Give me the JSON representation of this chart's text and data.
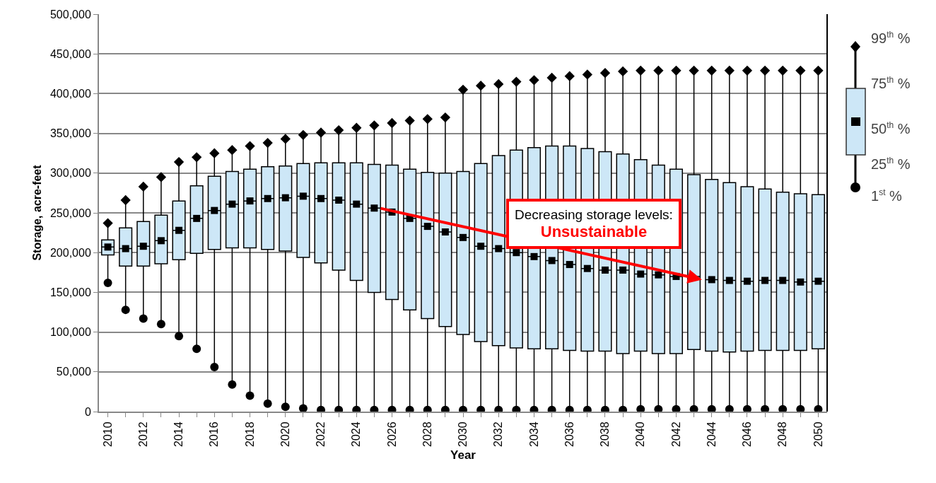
{
  "chart_data": {
    "type": "box",
    "xlabel": "Year",
    "ylabel": "Storage, acre-feet",
    "x": [
      2010,
      2011,
      2012,
      2013,
      2014,
      2015,
      2016,
      2017,
      2018,
      2019,
      2020,
      2021,
      2022,
      2023,
      2024,
      2025,
      2026,
      2027,
      2028,
      2029,
      2030,
      2031,
      2032,
      2033,
      2034,
      2035,
      2036,
      2037,
      2038,
      2039,
      2040,
      2041,
      2042,
      2043,
      2044,
      2045,
      2046,
      2047,
      2048,
      2049,
      2050
    ],
    "xlim": [
      2009.5,
      2050.5
    ],
    "xticks": [
      2010,
      {
        "value": 2011,
        "label": null
      },
      2012,
      {
        "value": 2013,
        "label": null
      },
      2014,
      {
        "value": 2015,
        "label": null
      },
      2016,
      {
        "value": 2017,
        "label": null
      },
      2018,
      {
        "value": 2019,
        "label": null
      },
      2020,
      {
        "value": 2021,
        "label": null
      },
      2022,
      {
        "value": 2023,
        "label": null
      },
      2024,
      {
        "value": 2025,
        "label": null
      },
      2026,
      {
        "value": 2027,
        "label": null
      },
      2028,
      {
        "value": 2029,
        "label": null
      },
      2030,
      {
        "value": 2031,
        "label": null
      },
      2032,
      {
        "value": 2033,
        "label": null
      },
      2034,
      {
        "value": 2035,
        "label": null
      },
      2036,
      {
        "value": 2037,
        "label": null
      },
      2038,
      {
        "value": 2039,
        "label": null
      },
      2040,
      {
        "value": 2041,
        "label": null
      },
      2042,
      {
        "value": 2043,
        "label": null
      },
      2044,
      {
        "value": 2045,
        "label": null
      },
      2046,
      {
        "value": 2047,
        "label": null
      },
      2048,
      {
        "value": 2049,
        "label": null
      },
      2050
    ],
    "ylim": [
      0,
      500000
    ],
    "yticks": [
      0,
      {
        "value": 50000,
        "label": "50,000"
      },
      {
        "value": 100000,
        "label": "100,000"
      },
      {
        "value": 150000,
        "label": "150,000"
      },
      {
        "value": 200000,
        "label": "200,000"
      },
      {
        "value": 250000,
        "label": "250,000"
      },
      {
        "value": 300000,
        "label": "300,000"
      },
      {
        "value": 350000,
        "label": "350,000"
      },
      {
        "value": 400000,
        "label": "400,000"
      },
      {
        "value": 450000,
        "label": "450,000"
      },
      {
        "value": 500000,
        "label": "500,000"
      }
    ],
    "grid": "y",
    "series": [
      {
        "color": "#cde7f7",
        "boxes": [
          {
            "low": 162000,
            "q1": 197000,
            "median": 207000,
            "q3": 216000,
            "high": 237000
          },
          {
            "low": 128000,
            "q1": 183000,
            "median": 205000,
            "q3": 231000,
            "high": 266000
          },
          {
            "low": 117000,
            "q1": 183000,
            "median": 208000,
            "q3": 239000,
            "high": 283000
          },
          {
            "low": 110000,
            "q1": 186000,
            "median": 215000,
            "q3": 247000,
            "high": 295000
          },
          {
            "low": 95000,
            "q1": 191000,
            "median": 228000,
            "q3": 265000,
            "high": 314000
          },
          {
            "low": 79000,
            "q1": 199000,
            "median": 243000,
            "q3": 284000,
            "high": 320000
          },
          {
            "low": 56000,
            "q1": 204000,
            "median": 253000,
            "q3": 296000,
            "high": 325000
          },
          {
            "low": 34000,
            "q1": 206000,
            "median": 261000,
            "q3": 302000,
            "high": 329000
          },
          {
            "low": 20000,
            "q1": 206000,
            "median": 265000,
            "q3": 305000,
            "high": 334000
          },
          {
            "low": 10000,
            "q1": 204000,
            "median": 268000,
            "q3": 308000,
            "high": 338000
          },
          {
            "low": 6000,
            "q1": 202000,
            "median": 269000,
            "q3": 309000,
            "high": 343000
          },
          {
            "low": 4000,
            "q1": 194000,
            "median": 271000,
            "q3": 312000,
            "high": 348000
          },
          {
            "low": 2000,
            "q1": 187000,
            "median": 268000,
            "q3": 313000,
            "high": 351000
          },
          {
            "low": 2000,
            "q1": 178000,
            "median": 266000,
            "q3": 313000,
            "high": 354000
          },
          {
            "low": 2000,
            "q1": 165000,
            "median": 261000,
            "q3": 313000,
            "high": 357000
          },
          {
            "low": 2000,
            "q1": 150000,
            "median": 256000,
            "q3": 311000,
            "high": 360000
          },
          {
            "low": 2000,
            "q1": 141000,
            "median": 251000,
            "q3": 310000,
            "high": 363000
          },
          {
            "low": 2000,
            "q1": 128000,
            "median": 243000,
            "q3": 305000,
            "high": 366000
          },
          {
            "low": 2000,
            "q1": 117000,
            "median": 233000,
            "q3": 301000,
            "high": 368000
          },
          {
            "low": 2000,
            "q1": 107000,
            "median": 226000,
            "q3": 300000,
            "high": 370000
          },
          {
            "low": 2000,
            "q1": 97000,
            "median": 219000,
            "q3": 302000,
            "high": 405000
          },
          {
            "low": 2000,
            "q1": 88000,
            "median": 208000,
            "q3": 312000,
            "high": 410000
          },
          {
            "low": 2000,
            "q1": 83000,
            "median": 205000,
            "q3": 322000,
            "high": 412000
          },
          {
            "low": 2000,
            "q1": 80000,
            "median": 200000,
            "q3": 329000,
            "high": 415000
          },
          {
            "low": 2000,
            "q1": 79000,
            "median": 195000,
            "q3": 332000,
            "high": 417000
          },
          {
            "low": 2000,
            "q1": 79000,
            "median": 190000,
            "q3": 334000,
            "high": 420000
          },
          {
            "low": 2000,
            "q1": 77000,
            "median": 185000,
            "q3": 334000,
            "high": 422000
          },
          {
            "low": 2000,
            "q1": 76000,
            "median": 180000,
            "q3": 331000,
            "high": 424000
          },
          {
            "low": 2000,
            "q1": 76000,
            "median": 178000,
            "q3": 327000,
            "high": 426000
          },
          {
            "low": 2000,
            "q1": 73000,
            "median": 178000,
            "q3": 324000,
            "high": 428000
          },
          {
            "low": 3000,
            "q1": 76000,
            "median": 173000,
            "q3": 317000,
            "high": 429000
          },
          {
            "low": 3000,
            "q1": 73000,
            "median": 172000,
            "q3": 310000,
            "high": 429000
          },
          {
            "low": 3000,
            "q1": 73000,
            "median": 170000,
            "q3": 305000,
            "high": 429000
          },
          {
            "low": 3000,
            "q1": 78000,
            "median": 170000,
            "q3": 298000,
            "high": 429000
          },
          {
            "low": 3000,
            "q1": 76000,
            "median": 166000,
            "q3": 292000,
            "high": 429000
          },
          {
            "low": 3000,
            "q1": 75000,
            "median": 165000,
            "q3": 288000,
            "high": 429000
          },
          {
            "low": 3000,
            "q1": 76000,
            "median": 164000,
            "q3": 283000,
            "high": 429000
          },
          {
            "low": 3000,
            "q1": 77000,
            "median": 165000,
            "q3": 280000,
            "high": 429000
          },
          {
            "low": 3000,
            "q1": 77000,
            "median": 165000,
            "q3": 276000,
            "high": 429000
          },
          {
            "low": 3000,
            "q1": 77000,
            "median": 163000,
            "q3": 274000,
            "high": 429000
          },
          {
            "low": 3000,
            "q1": 79000,
            "median": 164000,
            "q3": 273000,
            "high": 429000
          }
        ]
      },
      {
        "type": "scatter",
        "marker": "diamond",
        "color": "#000000",
        "values": [
          237000,
          266000,
          283000,
          295000,
          314000,
          320000,
          325000,
          329000,
          334000,
          338000,
          343000,
          348000,
          351000,
          354000,
          357000,
          360000,
          363000,
          366000,
          368000,
          370000,
          405000,
          410000,
          412000,
          415000,
          417000,
          420000,
          422000,
          424000,
          426000,
          428000,
          429000,
          429000,
          429000,
          429000,
          429000,
          429000,
          429000,
          429000,
          429000,
          429000,
          429000
        ]
      },
      {
        "type": "scatter",
        "marker": "square",
        "color": "#000000",
        "values": [
          207000,
          205000,
          208000,
          215000,
          228000,
          243000,
          253000,
          261000,
          265000,
          268000,
          269000,
          271000,
          268000,
          266000,
          261000,
          256000,
          251000,
          243000,
          233000,
          226000,
          219000,
          208000,
          205000,
          200000,
          195000,
          190000,
          185000,
          180000,
          178000,
          178000,
          173000,
          172000,
          170000,
          null,
          166000,
          165000,
          164000,
          165000,
          165000,
          163000,
          164000
        ]
      },
      {
        "type": "scatter",
        "marker": "circle",
        "color": "#000000",
        "values": [
          162000,
          128000,
          117000,
          110000,
          95000,
          79000,
          56000,
          34000,
          20000,
          10000,
          6000,
          4000,
          2000,
          2000,
          2000,
          2000,
          2000,
          2000,
          2000,
          2000,
          2000,
          2000,
          2000,
          2000,
          2000,
          2000,
          2000,
          2000,
          2000,
          2000,
          3000,
          3000,
          3000,
          3000,
          3000,
          3000,
          3000,
          3000,
          3000,
          3000,
          3000
        ]
      }
    ],
    "annotations": [
      "Decreasing storage levels:",
      "Unsustainable",
      "99$^{th}$ %",
      "75$^{th}$ %",
      "50$^{th}$ %",
      "25$^{th}$ %",
      "1$^{st}$ %"
    ]
  }
}
